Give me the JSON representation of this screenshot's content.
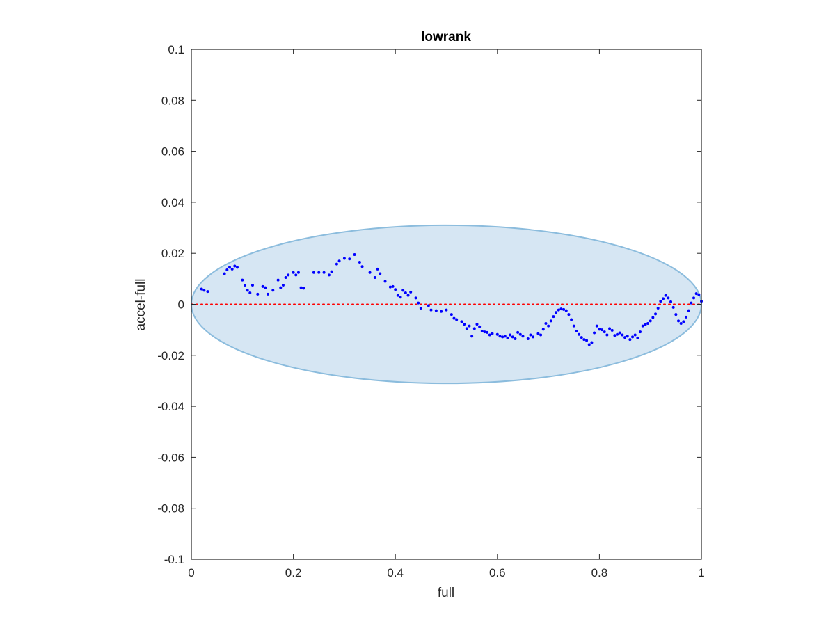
{
  "chart_data": {
    "type": "scatter",
    "title": "lowrank",
    "xlabel": "full",
    "ylabel": "accel-full",
    "xlim": [
      0,
      1
    ],
    "ylim": [
      -0.1,
      0.1
    ],
    "xticks": [
      0,
      0.2,
      0.4,
      0.6,
      0.8,
      1
    ],
    "xtick_labels": [
      "0",
      "0.2",
      "0.4",
      "0.6",
      "0.8",
      "1"
    ],
    "yticks": [
      -0.1,
      -0.08,
      -0.06,
      -0.04,
      -0.02,
      0,
      0.02,
      0.04,
      0.06,
      0.08,
      0.1
    ],
    "ytick_labels": [
      "-0.1",
      "-0.08",
      "-0.06",
      "-0.04",
      "-0.02",
      "0",
      "0.02",
      "0.04",
      "0.06",
      "0.08",
      "0.1"
    ],
    "grid": false,
    "reference_line": {
      "y": 0,
      "style": "dotted",
      "color": "#ff0000"
    },
    "ellipse": {
      "cx": 0.5,
      "cy": 0,
      "rx": 0.5,
      "ry": 0.031,
      "fill": "#d6e6f3",
      "stroke": "#8bbcdd"
    },
    "marker_color": "#0000ff",
    "points": [
      [
        0.02,
        0.006
      ],
      [
        0.025,
        0.0055
      ],
      [
        0.032,
        0.005
      ],
      [
        0.065,
        0.012
      ],
      [
        0.07,
        0.0135
      ],
      [
        0.075,
        0.0145
      ],
      [
        0.08,
        0.0138
      ],
      [
        0.085,
        0.015
      ],
      [
        0.09,
        0.0145
      ],
      [
        0.1,
        0.0095
      ],
      [
        0.105,
        0.0075
      ],
      [
        0.11,
        0.0055
      ],
      [
        0.115,
        0.0045
      ],
      [
        0.12,
        0.0075
      ],
      [
        0.13,
        0.004
      ],
      [
        0.14,
        0.007
      ],
      [
        0.145,
        0.0065
      ],
      [
        0.15,
        0.004
      ],
      [
        0.16,
        0.0055
      ],
      [
        0.17,
        0.0095
      ],
      [
        0.175,
        0.0065
      ],
      [
        0.18,
        0.0075
      ],
      [
        0.185,
        0.0105
      ],
      [
        0.19,
        0.0115
      ],
      [
        0.2,
        0.0125
      ],
      [
        0.205,
        0.0115
      ],
      [
        0.21,
        0.0125
      ],
      [
        0.215,
        0.0065
      ],
      [
        0.22,
        0.0063
      ],
      [
        0.24,
        0.0125
      ],
      [
        0.25,
        0.0125
      ],
      [
        0.26,
        0.0125
      ],
      [
        0.27,
        0.0115
      ],
      [
        0.275,
        0.0128
      ],
      [
        0.285,
        0.0158
      ],
      [
        0.29,
        0.017
      ],
      [
        0.3,
        0.018
      ],
      [
        0.31,
        0.0178
      ],
      [
        0.32,
        0.0195
      ],
      [
        0.33,
        0.0165
      ],
      [
        0.335,
        0.0148
      ],
      [
        0.35,
        0.0125
      ],
      [
        0.36,
        0.0105
      ],
      [
        0.365,
        0.0138
      ],
      [
        0.37,
        0.012
      ],
      [
        0.38,
        0.009
      ],
      [
        0.39,
        0.0068
      ],
      [
        0.395,
        0.007
      ],
      [
        0.4,
        0.0058
      ],
      [
        0.405,
        0.0035
      ],
      [
        0.41,
        0.0028
      ],
      [
        0.415,
        0.0055
      ],
      [
        0.42,
        0.0045
      ],
      [
        0.425,
        0.0035
      ],
      [
        0.43,
        0.0048
      ],
      [
        0.44,
        0.0025
      ],
      [
        0.445,
        0.0005
      ],
      [
        0.45,
        -0.0015
      ],
      [
        0.465,
        -0.0005
      ],
      [
        0.47,
        -0.0022
      ],
      [
        0.48,
        -0.0025
      ],
      [
        0.49,
        -0.0028
      ],
      [
        0.5,
        -0.0022
      ],
      [
        0.51,
        -0.004
      ],
      [
        0.515,
        -0.0055
      ],
      [
        0.52,
        -0.006
      ],
      [
        0.53,
        -0.0068
      ],
      [
        0.535,
        -0.0078
      ],
      [
        0.54,
        -0.0095
      ],
      [
        0.545,
        -0.0085
      ],
      [
        0.55,
        -0.0125
      ],
      [
        0.555,
        -0.0095
      ],
      [
        0.56,
        -0.0078
      ],
      [
        0.565,
        -0.0088
      ],
      [
        0.57,
        -0.0105
      ],
      [
        0.575,
        -0.0108
      ],
      [
        0.58,
        -0.011
      ],
      [
        0.585,
        -0.012
      ],
      [
        0.59,
        -0.0115
      ],
      [
        0.6,
        -0.0118
      ],
      [
        0.605,
        -0.0125
      ],
      [
        0.61,
        -0.0128
      ],
      [
        0.615,
        -0.0125
      ],
      [
        0.62,
        -0.0132
      ],
      [
        0.625,
        -0.012
      ],
      [
        0.63,
        -0.0128
      ],
      [
        0.635,
        -0.0135
      ],
      [
        0.64,
        -0.011
      ],
      [
        0.645,
        -0.0118
      ],
      [
        0.65,
        -0.0125
      ],
      [
        0.66,
        -0.0135
      ],
      [
        0.665,
        -0.012
      ],
      [
        0.67,
        -0.0128
      ],
      [
        0.68,
        -0.0115
      ],
      [
        0.685,
        -0.012
      ],
      [
        0.69,
        -0.0098
      ],
      [
        0.695,
        -0.0075
      ],
      [
        0.7,
        -0.0085
      ],
      [
        0.705,
        -0.0065
      ],
      [
        0.71,
        -0.0048
      ],
      [
        0.715,
        -0.0032
      ],
      [
        0.72,
        -0.0022
      ],
      [
        0.725,
        -0.0018
      ],
      [
        0.73,
        -0.002
      ],
      [
        0.735,
        -0.0025
      ],
      [
        0.74,
        -0.004
      ],
      [
        0.745,
        -0.006
      ],
      [
        0.75,
        -0.0085
      ],
      [
        0.755,
        -0.0105
      ],
      [
        0.76,
        -0.0118
      ],
      [
        0.765,
        -0.013
      ],
      [
        0.77,
        -0.0138
      ],
      [
        0.775,
        -0.0142
      ],
      [
        0.78,
        -0.0158
      ],
      [
        0.785,
        -0.015
      ],
      [
        0.79,
        -0.0112
      ],
      [
        0.795,
        -0.0085
      ],
      [
        0.8,
        -0.0098
      ],
      [
        0.805,
        -0.01
      ],
      [
        0.81,
        -0.0108
      ],
      [
        0.815,
        -0.012
      ],
      [
        0.82,
        -0.0095
      ],
      [
        0.825,
        -0.0102
      ],
      [
        0.83,
        -0.0122
      ],
      [
        0.835,
        -0.0118
      ],
      [
        0.84,
        -0.0112
      ],
      [
        0.845,
        -0.012
      ],
      [
        0.85,
        -0.013
      ],
      [
        0.855,
        -0.0125
      ],
      [
        0.86,
        -0.0138
      ],
      [
        0.865,
        -0.0128
      ],
      [
        0.87,
        -0.012
      ],
      [
        0.875,
        -0.0132
      ],
      [
        0.88,
        -0.0108
      ],
      [
        0.885,
        -0.0085
      ],
      [
        0.89,
        -0.008
      ],
      [
        0.895,
        -0.0075
      ],
      [
        0.9,
        -0.0065
      ],
      [
        0.905,
        -0.0052
      ],
      [
        0.91,
        -0.0038
      ],
      [
        0.915,
        -0.0015
      ],
      [
        0.92,
        0.0012
      ],
      [
        0.925,
        0.0022
      ],
      [
        0.93,
        0.0035
      ],
      [
        0.935,
        0.0025
      ],
      [
        0.94,
        0.001
      ],
      [
        0.945,
        -0.0012
      ],
      [
        0.95,
        -0.004
      ],
      [
        0.955,
        -0.0065
      ],
      [
        0.96,
        -0.0075
      ],
      [
        0.965,
        -0.0068
      ],
      [
        0.97,
        -0.005
      ],
      [
        0.975,
        -0.0025
      ],
      [
        0.98,
        0.0005
      ],
      [
        0.985,
        0.0025
      ],
      [
        0.99,
        0.0042
      ],
      [
        0.995,
        0.0038
      ],
      [
        1.0,
        0.0012
      ]
    ]
  }
}
